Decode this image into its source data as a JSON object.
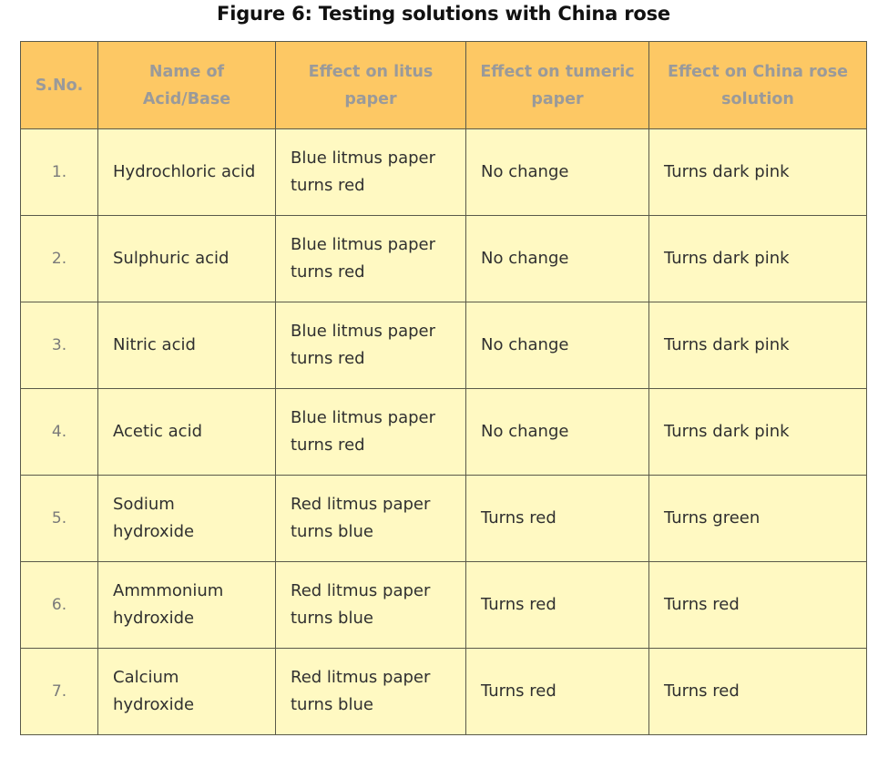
{
  "title": "Figure 6: Testing solutions with China rose",
  "headers": [
    "S.No.",
    "Name of Acid/Base",
    "Effect on litus paper",
    "Effect on tumeric paper",
    "Effect on China rose solution"
  ],
  "rows": [
    [
      "1.",
      "Hydrochloric acid",
      "Blue litmus paper turns red",
      "No change",
      "Turns dark pink"
    ],
    [
      "2.",
      "Sulphuric acid",
      "Blue litmus paper turns red",
      "No change",
      "Turns dark pink"
    ],
    [
      "3.",
      "Nitric acid",
      "Blue litmus paper turns red",
      "No change",
      "Turns dark pink"
    ],
    [
      "4.",
      "Acetic acid",
      "Blue litmus paper turns red",
      "No change",
      "Turns dark pink"
    ],
    [
      "5.",
      "Sodium hydroxide",
      "Red litmus paper turns blue",
      "Turns red",
      "Turns green"
    ],
    [
      "6.",
      "Ammmonium hydroxide",
      "Red litmus paper turns blue",
      "Turns red",
      "Turns red"
    ],
    [
      "7.",
      "Calcium hydroxide",
      "Red litmus paper turns blue",
      "Turns red",
      "Turns red"
    ]
  ],
  "colors": {
    "header_bg": "#fdc864",
    "header_text": "#9a9a9a",
    "cell_bg": "#fff9c2",
    "border": "#5a5a4a"
  }
}
